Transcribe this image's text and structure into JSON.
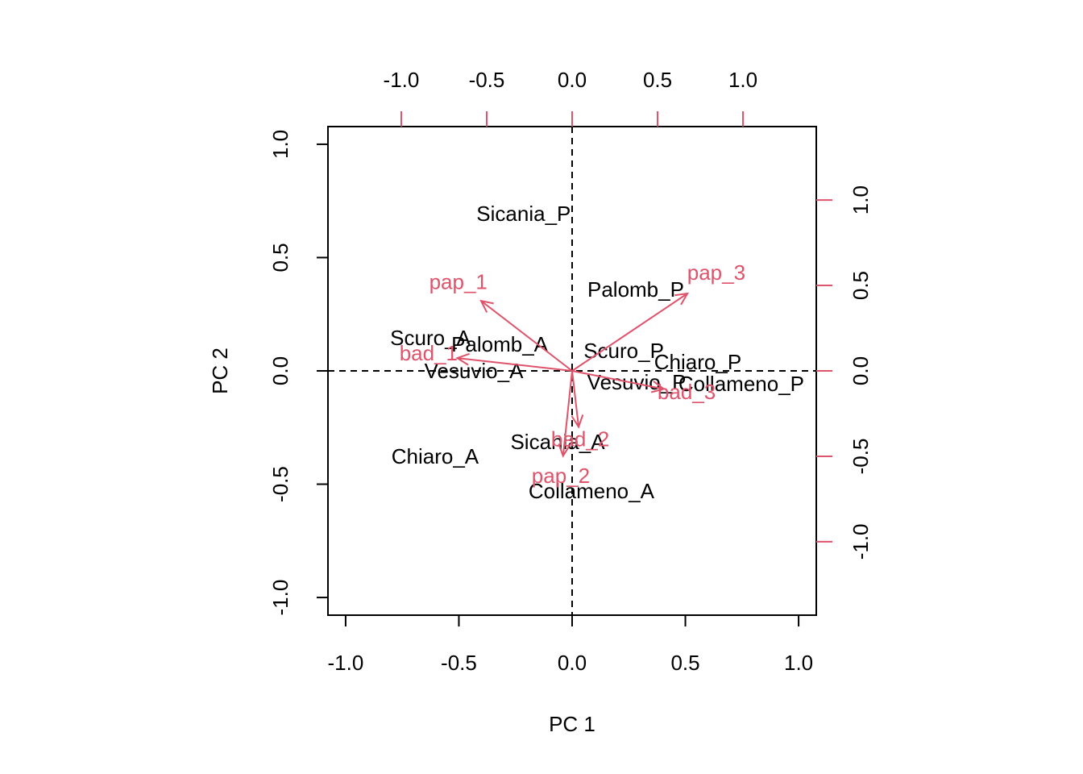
{
  "chart_data": {
    "type": "biplot",
    "xlabel": "PC 1",
    "ylabel": "PC 2",
    "xlim": [
      -1.078,
      1.078
    ],
    "ylim": [
      -1.078,
      1.078
    ],
    "xticks": [
      {
        "value": -1,
        "label": "-1.0"
      },
      -0.5,
      {
        "value": 0,
        "label": "0.0"
      },
      0.5,
      {
        "value": 1,
        "label": "1.0"
      }
    ],
    "yticks": [
      {
        "value": -1,
        "label": "-1.0"
      },
      -0.5,
      {
        "value": 0,
        "label": "0.0"
      },
      0.5,
      {
        "value": 1,
        "label": "1.0"
      }
    ],
    "x2lim": [
      -1.429,
      1.429
    ],
    "y2lim": [
      -1.43,
      1.43
    ],
    "x2ticks": [
      {
        "value": -1,
        "label": "-1.0"
      },
      -0.5,
      {
        "value": 0,
        "label": "0.0"
      },
      0.5,
      {
        "value": 1,
        "label": "1.0"
      }
    ],
    "y2ticks": [
      {
        "value": -1,
        "label": "-1.0"
      },
      -0.5,
      {
        "value": 0,
        "label": "0.0"
      },
      0.5,
      {
        "value": 1,
        "label": "1.0"
      }
    ],
    "scores": {
      "color": "#000000",
      "names": [
        "Sicania_P",
        "Palomb_P",
        "Scuro_A",
        "Palomb_A",
        "Vesuvio_A",
        "Scuro_P",
        "Chiaro_P",
        "Vesuvio_P",
        "Collameno_P",
        "Sicania_A",
        "Chiaro_A",
        "Collameno_A"
      ],
      "x": [
        -0.214,
        0.281,
        -0.626,
        -0.32,
        -0.434,
        0.228,
        0.555,
        0.285,
        0.747,
        -0.064,
        -0.605,
        0.085
      ],
      "y": [
        0.687,
        0.352,
        0.139,
        0.11,
        -0.007,
        0.082,
        0.032,
        -0.057,
        -0.064,
        -0.32,
        -0.384,
        -0.537
      ]
    },
    "loadings": {
      "color": "#DF536B",
      "names": [
        "pap_1",
        "pap_3",
        "bad_1",
        "bad_3",
        "bad_2",
        "pap_2"
      ],
      "x": [
        -0.533,
        0.675,
        -0.672,
        0.536,
        0.038,
        -0.053
      ],
      "y": [
        0.41,
        0.453,
        0.075,
        -0.106,
        -0.328,
        -0.498
      ]
    }
  }
}
